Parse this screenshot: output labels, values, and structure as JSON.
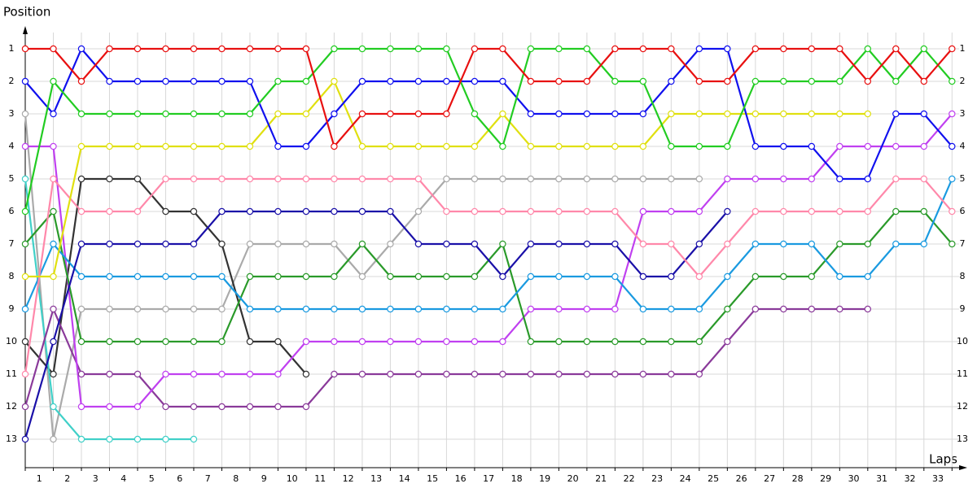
{
  "chart_data": {
    "type": "line",
    "y_axis_label": "Position",
    "x_axis_label": "Laps",
    "x": [
      0,
      1,
      2,
      3,
      4,
      5,
      6,
      7,
      8,
      9,
      10,
      11,
      12,
      13,
      14,
      15,
      16,
      17,
      18,
      19,
      20,
      21,
      22,
      23,
      24,
      25,
      26,
      27,
      28,
      29,
      30,
      31,
      32,
      33
    ],
    "xlim": [
      0,
      33.6
    ],
    "xticks": [
      {
        "value": 0.5,
        "label": "1"
      },
      {
        "value": 1.5,
        "label": "2"
      },
      {
        "value": 2.5,
        "label": "3"
      },
      {
        "value": 3.5,
        "label": "4"
      },
      {
        "value": 4.5,
        "label": "5"
      },
      {
        "value": 5.5,
        "label": "6"
      },
      {
        "value": 6.5,
        "label": "7"
      },
      {
        "value": 7.5,
        "label": "8"
      },
      {
        "value": 8.5,
        "label": "9"
      },
      {
        "value": 9.5,
        "label": "10"
      },
      {
        "value": 10.5,
        "label": "11"
      },
      {
        "value": 11.5,
        "label": "12"
      },
      {
        "value": 12.5,
        "label": "13"
      },
      {
        "value": 13.5,
        "label": "14"
      },
      {
        "value": 14.5,
        "label": "15"
      },
      {
        "value": 15.5,
        "label": "16"
      },
      {
        "value": 16.5,
        "label": "17"
      },
      {
        "value": 17.5,
        "label": "18"
      },
      {
        "value": 18.5,
        "label": "19"
      },
      {
        "value": 19.5,
        "label": "20"
      },
      {
        "value": 20.5,
        "label": "21"
      },
      {
        "value": 21.5,
        "label": "22"
      },
      {
        "value": 22.5,
        "label": "23"
      },
      {
        "value": 23.5,
        "label": "24"
      },
      {
        "value": 24.5,
        "label": "25"
      },
      {
        "value": 25.5,
        "label": "26"
      },
      {
        "value": 26.5,
        "label": "27"
      },
      {
        "value": 27.5,
        "label": "28"
      },
      {
        "value": 28.5,
        "label": "29"
      },
      {
        "value": 29.5,
        "label": "30"
      },
      {
        "value": 30.5,
        "label": "31"
      },
      {
        "value": 31.5,
        "label": "32"
      },
      {
        "value": 32.5,
        "label": "33"
      }
    ],
    "ylim": [
      13.875,
      0.25
    ],
    "yticks": [
      1,
      2,
      3,
      4,
      5,
      6,
      7,
      8,
      9,
      10,
      11,
      12,
      13
    ],
    "grid": true,
    "series": [
      {
        "color": "#aaaaaa",
        "values": [
          3,
          13,
          9,
          9,
          9,
          9,
          9,
          9,
          7,
          7,
          7,
          7,
          8,
          7,
          6,
          5,
          5,
          5,
          5,
          5,
          5,
          5,
          5,
          5,
          5,
          null,
          null,
          null,
          null,
          null,
          null,
          null,
          null,
          null
        ]
      },
      {
        "color": "#333333",
        "values": [
          10,
          11,
          5,
          5,
          5,
          6,
          6,
          7,
          10,
          10,
          11,
          null,
          null,
          null,
          null,
          null,
          null,
          null,
          null,
          null,
          null,
          null,
          null,
          null,
          null,
          null,
          null,
          null,
          null,
          null,
          null,
          null,
          null,
          null
        ]
      },
      {
        "color": "#40d0c8",
        "values": [
          5,
          12,
          13,
          13,
          13,
          13,
          13,
          null,
          null,
          null,
          null,
          null,
          null,
          null,
          null,
          null,
          null,
          null,
          null,
          null,
          null,
          null,
          null,
          null,
          null,
          null,
          null,
          null,
          null,
          null,
          null,
          null,
          null,
          null
        ]
      },
      {
        "color": "#8a3a9a",
        "values": [
          12,
          9,
          11,
          11,
          11,
          12,
          12,
          12,
          12,
          12,
          12,
          11,
          11,
          11,
          11,
          11,
          11,
          11,
          11,
          11,
          11,
          11,
          11,
          11,
          11,
          10,
          9,
          9,
          9,
          9,
          9,
          null,
          null,
          null
        ]
      },
      {
        "color": "#c040f0",
        "values": [
          4,
          4,
          12,
          12,
          12,
          11,
          11,
          11,
          11,
          11,
          10,
          10,
          10,
          10,
          10,
          10,
          10,
          10,
          9,
          9,
          9,
          9,
          6,
          6,
          6,
          5,
          5,
          5,
          5,
          4,
          4,
          4,
          4,
          3
        ]
      },
      {
        "color": "#2a9a2a",
        "values": [
          7,
          6,
          10,
          10,
          10,
          10,
          10,
          10,
          8,
          8,
          8,
          8,
          7,
          8,
          8,
          8,
          8,
          7,
          10,
          10,
          10,
          10,
          10,
          10,
          10,
          9,
          8,
          8,
          8,
          7,
          7,
          6,
          6,
          7
        ]
      },
      {
        "color": "#1a9ae0",
        "values": [
          9,
          7,
          8,
          8,
          8,
          8,
          8,
          8,
          9,
          9,
          9,
          9,
          9,
          9,
          9,
          9,
          9,
          9,
          8,
          8,
          8,
          8,
          9,
          9,
          9,
          8,
          7,
          7,
          7,
          8,
          8,
          7,
          7,
          5
        ]
      },
      {
        "color": "#1a10a8",
        "values": [
          13,
          10,
          7,
          7,
          7,
          7,
          7,
          6,
          6,
          6,
          6,
          6,
          6,
          6,
          7,
          7,
          7,
          8,
          7,
          7,
          7,
          7,
          8,
          8,
          7,
          6,
          null,
          null,
          null,
          null,
          null,
          null,
          null,
          null
        ]
      },
      {
        "color": "#ff88aa",
        "values": [
          11,
          5,
          6,
          6,
          6,
          5,
          5,
          5,
          5,
          5,
          5,
          5,
          5,
          5,
          5,
          6,
          6,
          6,
          6,
          6,
          6,
          6,
          7,
          7,
          8,
          7,
          6,
          6,
          6,
          6,
          6,
          5,
          5,
          6
        ]
      },
      {
        "color": "#e0e010",
        "values": [
          8,
          8,
          4,
          4,
          4,
          4,
          4,
          4,
          4,
          3,
          3,
          2,
          4,
          4,
          4,
          4,
          4,
          3,
          4,
          4,
          4,
          4,
          4,
          3,
          3,
          3,
          3,
          3,
          3,
          3,
          3,
          null,
          null,
          null
        ]
      },
      {
        "color": "#1010ee",
        "values": [
          2,
          3,
          1,
          2,
          2,
          2,
          2,
          2,
          2,
          4,
          4,
          3,
          2,
          2,
          2,
          2,
          2,
          2,
          3,
          3,
          3,
          3,
          3,
          2,
          1,
          1,
          4,
          4,
          4,
          5,
          5,
          3,
          3,
          4
        ]
      },
      {
        "color": "#22cc22",
        "values": [
          6,
          2,
          3,
          3,
          3,
          3,
          3,
          3,
          3,
          2,
          2,
          1,
          1,
          1,
          1,
          1,
          3,
          4,
          1,
          1,
          1,
          2,
          2,
          4,
          4,
          4,
          2,
          2,
          2,
          2,
          1,
          2,
          1,
          2
        ]
      },
      {
        "color": "#e81010",
        "values": [
          1,
          1,
          2,
          1,
          1,
          1,
          1,
          1,
          1,
          1,
          1,
          4,
          3,
          3,
          3,
          3,
          1,
          1,
          2,
          2,
          2,
          1,
          1,
          1,
          2,
          2,
          1,
          1,
          1,
          1,
          2,
          1,
          2,
          1
        ]
      }
    ]
  }
}
